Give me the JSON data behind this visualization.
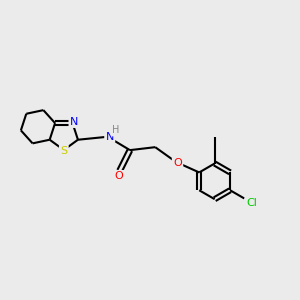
{
  "bg_color": "#ebebeb",
  "line_color": "#000000",
  "bond_width": 1.5,
  "atom_colors": {
    "N": "#0000ff",
    "S": "#cccc00",
    "O": "#ff0000",
    "Cl": "#00cc00",
    "C": "#000000",
    "H": "#888888"
  },
  "figsize": [
    3.0,
    3.0
  ],
  "dpi": 100
}
